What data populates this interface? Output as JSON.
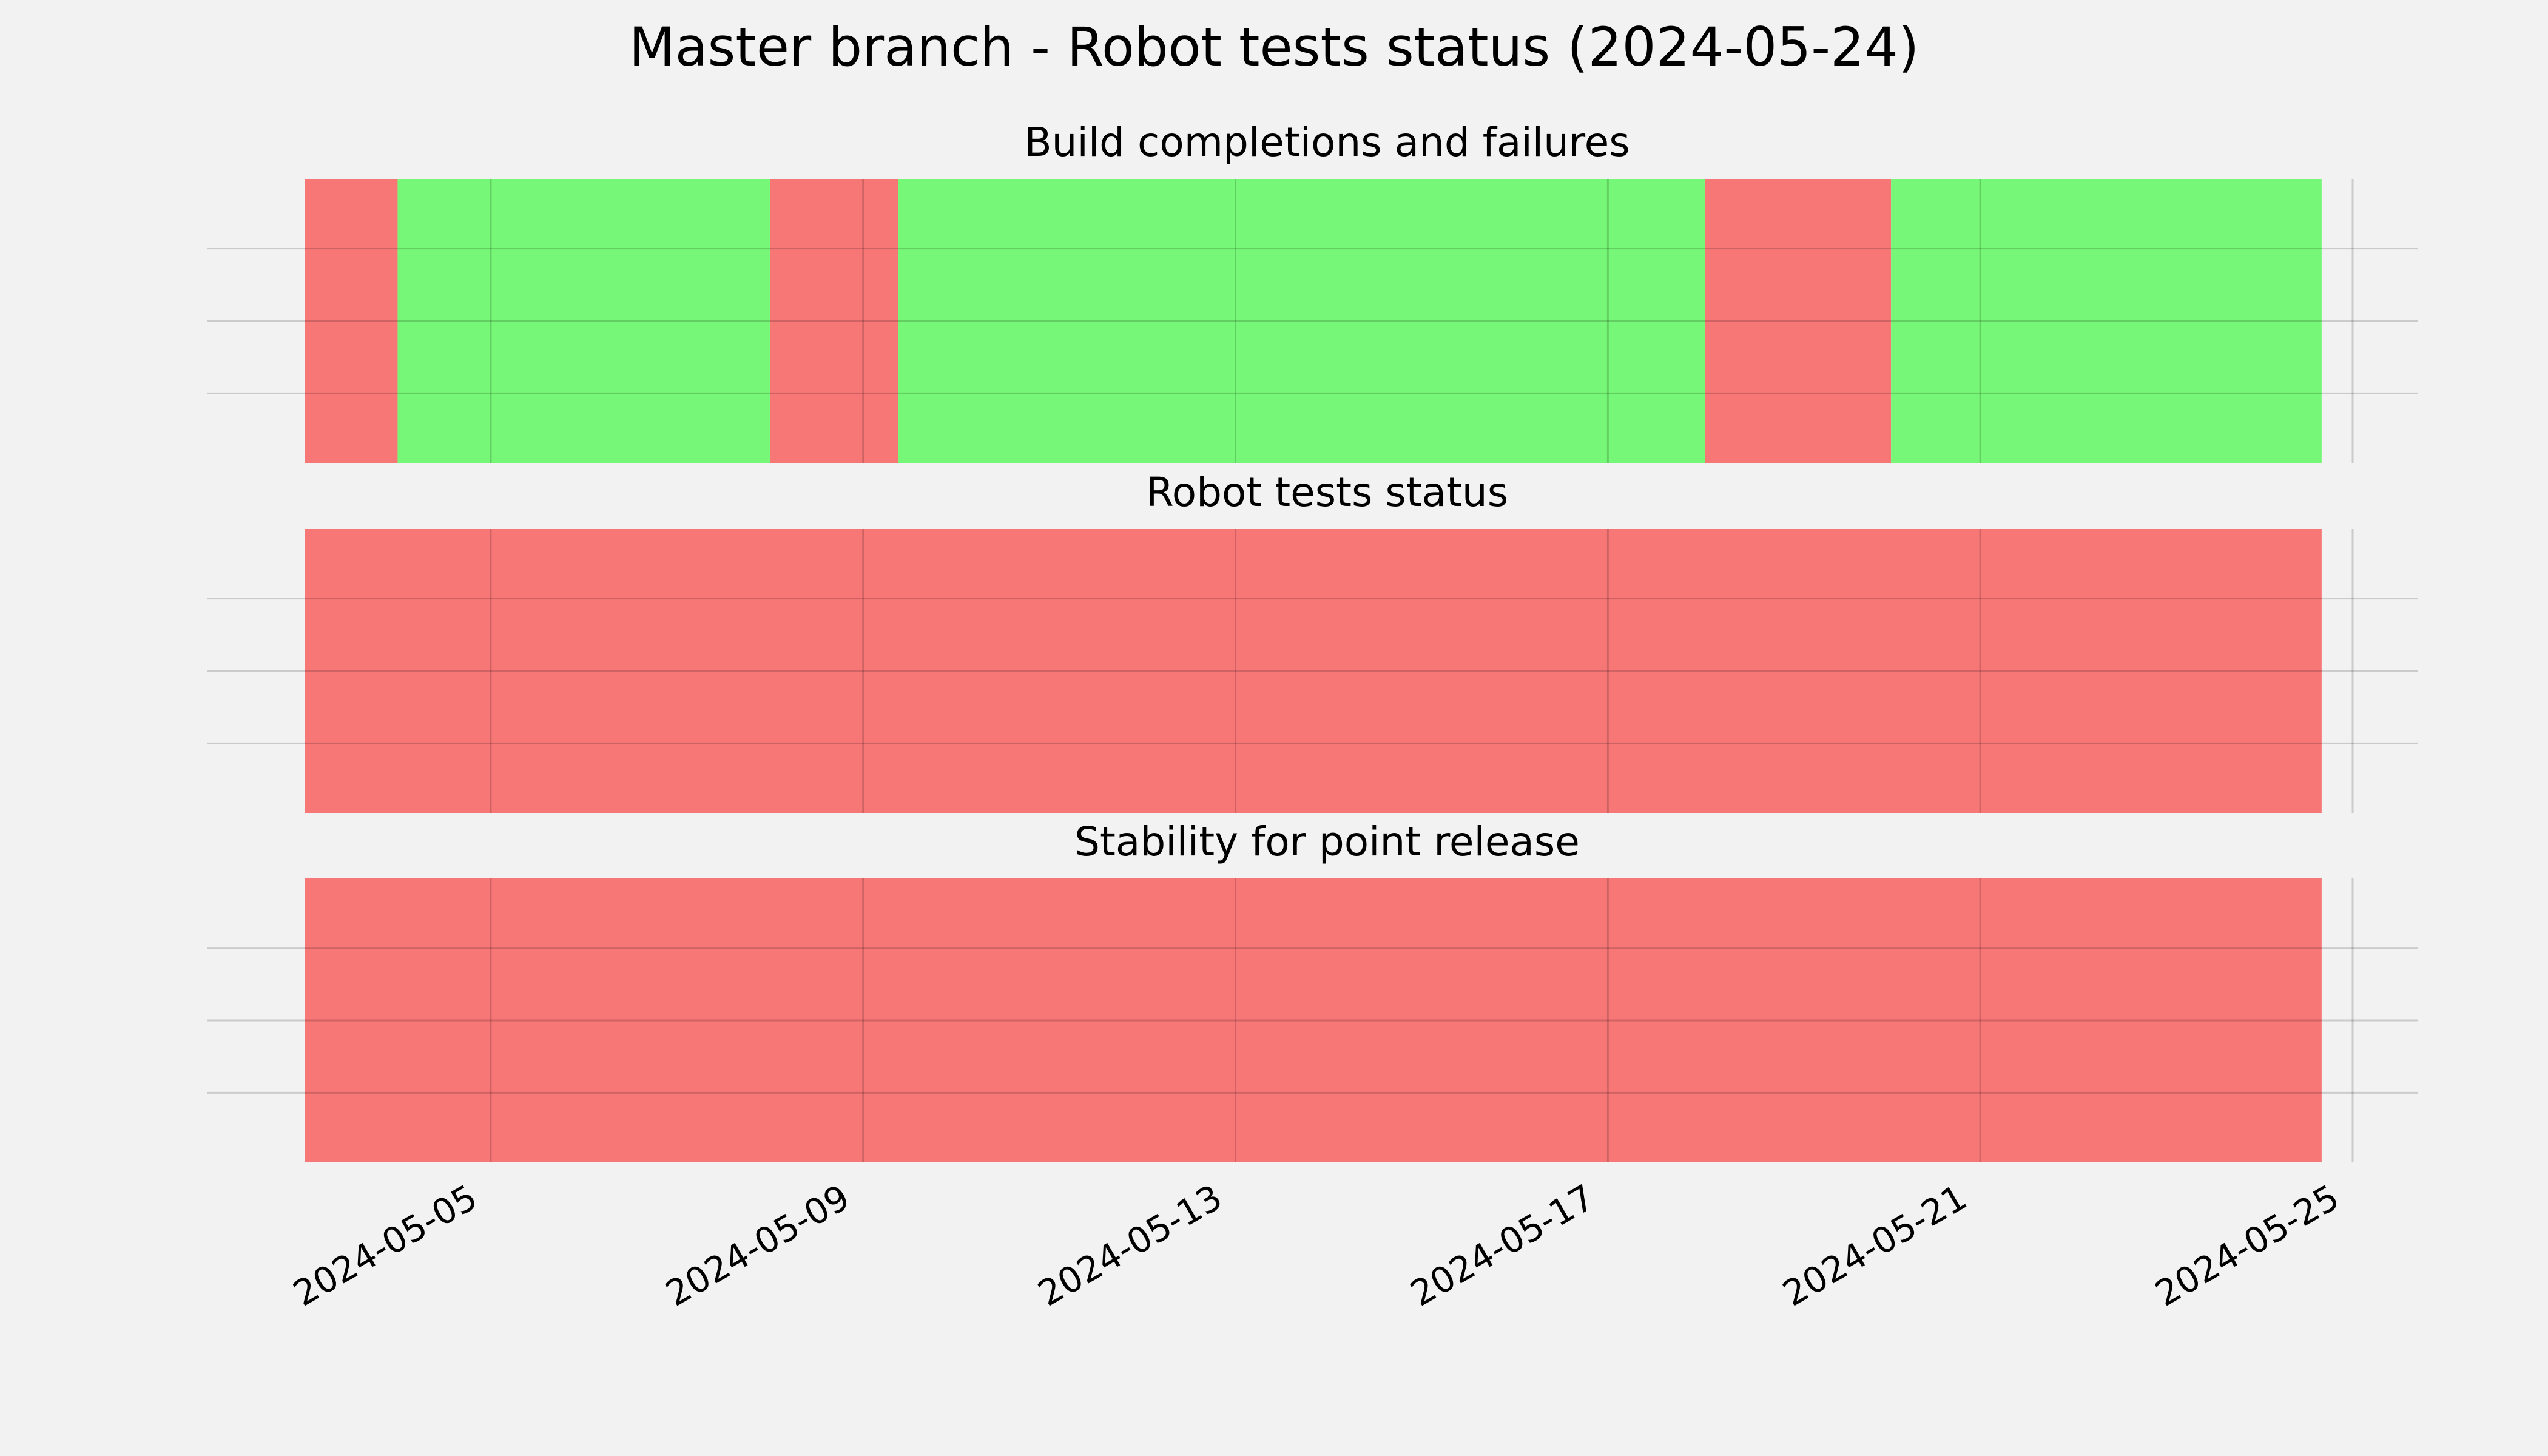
{
  "chart_data": {
    "type": "timeline",
    "title": "Master branch - Robot tests status (2024-05-24)",
    "x_range": [
      "2024-05-03",
      "2024-05-25"
    ],
    "x_ticks": [
      "2024-05-05",
      "2024-05-09",
      "2024-05-13",
      "2024-05-17",
      "2024-05-21",
      "2024-05-25"
    ],
    "grid": true,
    "colors": {
      "pass": "#77f777",
      "fail": "#f77777"
    },
    "panels": [
      {
        "title": "Build completions and failures",
        "segments": [
          {
            "start": "2024-05-03T00:00",
            "end": "2024-05-04T00:00",
            "status": "fail"
          },
          {
            "start": "2024-05-04T00:00",
            "end": "2024-05-08T00:00",
            "status": "pass"
          },
          {
            "start": "2024-05-08T00:00",
            "end": "2024-05-09T09:00",
            "status": "fail"
          },
          {
            "start": "2024-05-09T09:00",
            "end": "2024-05-18T01:00",
            "status": "pass"
          },
          {
            "start": "2024-05-18T01:00",
            "end": "2024-05-20T01:00",
            "status": "fail"
          },
          {
            "start": "2024-05-20T01:00",
            "end": "2024-05-24T16:00",
            "status": "pass"
          }
        ]
      },
      {
        "title": "Robot tests status",
        "segments": [
          {
            "start": "2024-05-03T00:00",
            "end": "2024-05-24T16:00",
            "status": "fail"
          }
        ]
      },
      {
        "title": "Stability for point release",
        "segments": [
          {
            "start": "2024-05-03T00:00",
            "end": "2024-05-24T16:00",
            "status": "fail"
          }
        ]
      }
    ]
  }
}
